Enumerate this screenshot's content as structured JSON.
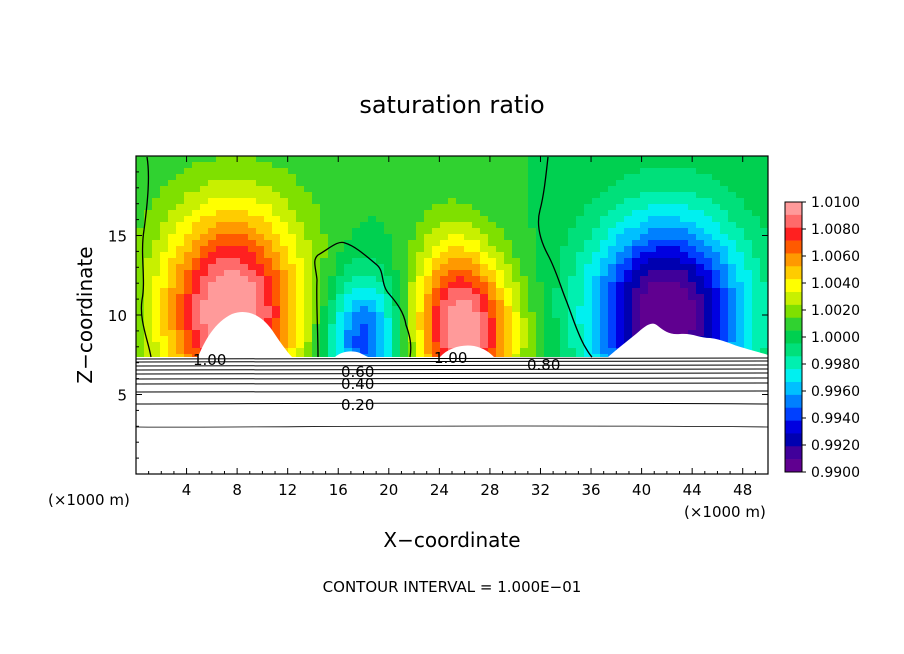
{
  "chart_data": {
    "type": "heatmap",
    "title": "saturation ratio",
    "xlabel": "X−coordinate",
    "ylabel": "Z−coordinate",
    "x_unit_left": "(×1000 m)",
    "x_unit_right": "(×1000 m)",
    "xlim": [
      0,
      50
    ],
    "ylim": [
      0,
      20
    ],
    "x_ticks": [
      4,
      8,
      12,
      16,
      20,
      24,
      28,
      32,
      36,
      40,
      44,
      48
    ],
    "y_ticks": [
      5,
      10,
      15
    ],
    "footer": "CONTOUR INTERVAL = 1.000E−01",
    "colorbar": {
      "labels": [
        "1.0100",
        "1.0080",
        "1.0060",
        "1.0040",
        "1.0020",
        "1.0000",
        "0.9980",
        "0.9960",
        "0.9940",
        "0.9920",
        "0.9900"
      ],
      "colors": [
        "#ff9a9a",
        "#ff6a6a",
        "#ff2020",
        "#ff5a00",
        "#ff9900",
        "#ffcc00",
        "#ffff00",
        "#c8f000",
        "#7fe000",
        "#30d230",
        "#00d050",
        "#00e07a",
        "#00f0b0",
        "#00f0f0",
        "#00c0ff",
        "#0080ff",
        "#0040ff",
        "#0000e0",
        "#0000b0",
        "#40009a",
        "#600090"
      ]
    },
    "contour_labels": [
      "1.00",
      "1.00",
      "0.80",
      "0.60",
      "0.40",
      "0.20"
    ],
    "blobs": [
      {
        "x": 7.5,
        "z": 10.0,
        "ax": 5.5,
        "az": 5.5,
        "amp": 0.01
      },
      {
        "x": 26.0,
        "z": 8.8,
        "ax": 4.0,
        "az": 4.5,
        "amp": 0.009
      },
      {
        "x": 18.0,
        "z": 8.5,
        "ax": 3.0,
        "az": 4.0,
        "amp": -0.0065
      },
      {
        "x": 42.0,
        "z": 10.0,
        "ax": 6.0,
        "az": 6.0,
        "amp": -0.011
      },
      {
        "x": 25.0,
        "z": 13.0,
        "ax": 3.0,
        "az": 4.0,
        "amp": 0.002
      },
      {
        "x": 8.0,
        "z": 16.0,
        "ax": 6.0,
        "az": 4.0,
        "amp": 0.0015
      }
    ],
    "background_value": 1.0005
  }
}
